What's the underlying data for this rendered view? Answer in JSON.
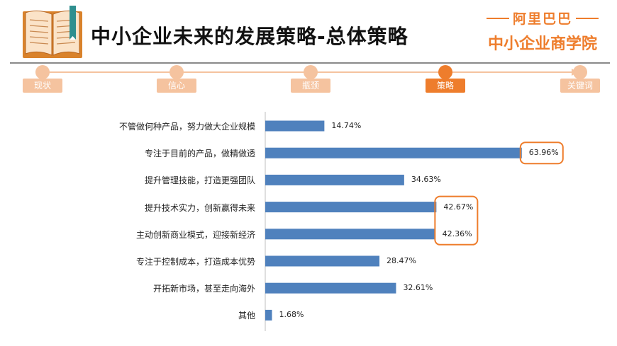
{
  "header": {
    "title": "中小企业未来的发展策略-总体策略",
    "brand_line1": "阿里巴巴",
    "brand_line2": "中小企业商学院"
  },
  "timeline": {
    "steps": [
      {
        "label": "现状",
        "active": false
      },
      {
        "label": "信心",
        "active": false
      },
      {
        "label": "瓶颈",
        "active": false
      },
      {
        "label": "策略",
        "active": true
      },
      {
        "label": "关键词",
        "active": false
      }
    ]
  },
  "colors": {
    "bar": "#4f81bd",
    "accent": "#ee7d2c",
    "accent_light": "#f5c39f"
  },
  "chart_data": {
    "type": "bar",
    "orientation": "horizontal",
    "categories": [
      "不管做何种产品，努力做大企业规模",
      "专注于目前的产品，做精做透",
      "提升管理技能，打造更强团队",
      "提升技术实力，创新赢得未来",
      "主动创新商业模式，迎接新经济",
      "专注于控制成本，打造成本优势",
      "开拓新市场，甚至走向海外",
      "其他"
    ],
    "values": [
      14.74,
      63.96,
      34.63,
      42.67,
      42.36,
      28.47,
      32.61,
      1.68
    ],
    "value_labels": [
      "14.74%",
      "63.96%",
      "34.63%",
      "42.67%",
      "42.36%",
      "28.47%",
      "32.61%",
      "1.68%"
    ],
    "xlim": [
      0,
      64
    ],
    "highlighted": [
      [
        1
      ],
      [
        3,
        4
      ]
    ]
  }
}
